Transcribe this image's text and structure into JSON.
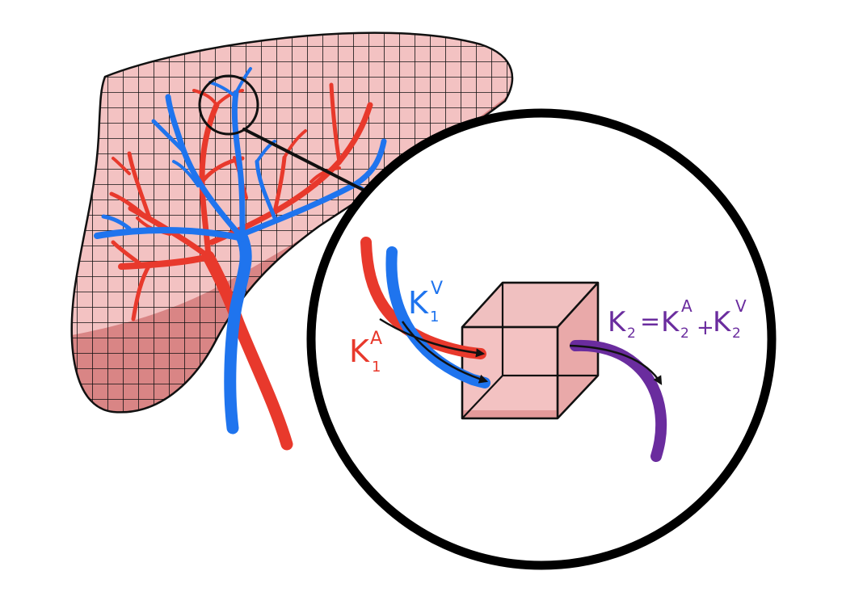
{
  "labels": {
    "k1_arterial": {
      "main": "K",
      "sub": "1",
      "sup": "A"
    },
    "k1_venous": {
      "main": "K",
      "sub": "1",
      "sup": "V"
    },
    "k2_equation": {
      "lhs_main": "K",
      "lhs_sub": "2",
      "eq": "=",
      "t1_main": "K",
      "t1_sub": "2",
      "t1_sup": "A",
      "plus": "+",
      "t2_main": "K",
      "t2_sub": "2",
      "t2_sup": "V"
    }
  },
  "colors": {
    "arterial": "#e8392c",
    "venous": "#1f74ee",
    "efflux": "#6a2c9e",
    "tissue_light": "#f3c2c2",
    "tissue_dark": "#d98585",
    "outline": "#111111"
  }
}
